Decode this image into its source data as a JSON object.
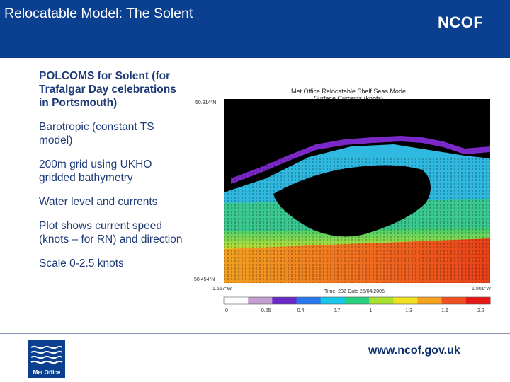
{
  "slide": {
    "title": "Relocatable Model: The Solent",
    "header_logo": "NCOF",
    "footer_url": "www.ncof.gov.uk",
    "footer_logo": "Met Office",
    "header_color": "#0b3f8f"
  },
  "bullets": [
    "POLCOMS for Solent (for Trafalgar Day celebrations in Portsmouth)",
    "Barotropic (constant TS model)",
    "200m grid using UKHO gridded bathymetry",
    "Water level and currents",
    "Plot shows current speed (knots – for RN) and direction",
    "Scale 0-2.5 knots"
  ],
  "figure": {
    "title_line1": "Met Office Relocatable Shelf Seas Mode",
    "title_line2": "Surface Currents (knots)",
    "lat_top": "50.914°N",
    "lat_bottom": "50.454°N",
    "lon_left": "1.667°W",
    "lon_right": "1.001°W",
    "time_label": "Time: 23Z Date 25/04/2005",
    "colorbar_ticks": [
      "0",
      "0.25",
      "0.4",
      "0.7",
      "1",
      "1.3",
      "1.6",
      "2.2"
    ],
    "colorbar_colors": [
      "#ffffff",
      "#c49fd0",
      "#6a28c8",
      "#2878f0",
      "#18c8e8",
      "#28d080",
      "#a8e030",
      "#f0e020",
      "#f8a020",
      "#f05020",
      "#e81818"
    ]
  }
}
